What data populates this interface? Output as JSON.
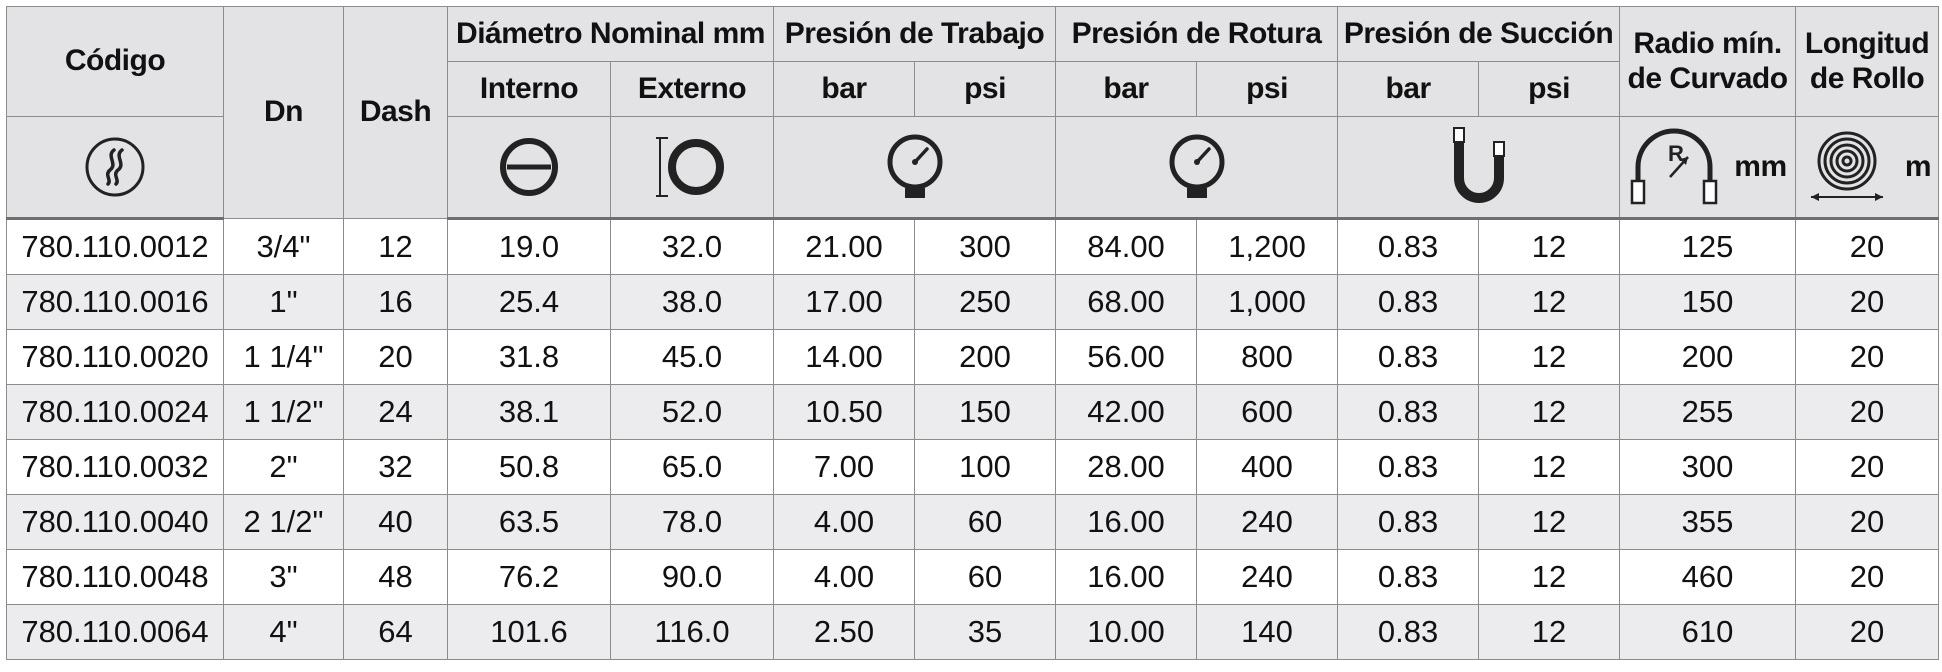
{
  "headers": {
    "codigo": "Código",
    "dn": "Dn",
    "dash": "Dash",
    "diametro": "Diámetro Nominal mm",
    "interno": "Interno",
    "externo": "Externo",
    "trabajo": "Presión de Trabajo",
    "rotura": "Presión de Rotura",
    "succion": "Presión de Succión",
    "bar": "bar",
    "psi": "psi",
    "radio_line1": "Radio mín.",
    "radio_line2": "de Curvado",
    "longitud_line1": "Longitud",
    "longitud_line2": "de Rollo",
    "radio_unit": "mm",
    "longitud_unit": "m"
  },
  "icons": {
    "codigo": "hose-code-icon",
    "interno": "inner-diameter-icon",
    "externo": "outer-diameter-icon",
    "trabajo": "pressure-gauge-icon",
    "rotura": "burst-pressure-gauge-icon",
    "succion": "u-tube-vacuum-icon",
    "radio": "bend-radius-icon",
    "radio_letter": "R",
    "longitud": "coil-length-icon"
  },
  "rows": [
    {
      "codigo": "780.110.0012",
      "dn": "3/4\"",
      "dash": "12",
      "interno": "19.0",
      "externo": "32.0",
      "trabajo_bar": "21.00",
      "trabajo_psi": "300",
      "rotura_bar": "84.00",
      "rotura_psi": "1,200",
      "succion_bar": "0.83",
      "succion_psi": "12",
      "radio": "125",
      "longitud": "20"
    },
    {
      "codigo": "780.110.0016",
      "dn": "1\"",
      "dash": "16",
      "interno": "25.4",
      "externo": "38.0",
      "trabajo_bar": "17.00",
      "trabajo_psi": "250",
      "rotura_bar": "68.00",
      "rotura_psi": "1,000",
      "succion_bar": "0.83",
      "succion_psi": "12",
      "radio": "150",
      "longitud": "20"
    },
    {
      "codigo": "780.110.0020",
      "dn": "1 1/4\"",
      "dash": "20",
      "interno": "31.8",
      "externo": "45.0",
      "trabajo_bar": "14.00",
      "trabajo_psi": "200",
      "rotura_bar": "56.00",
      "rotura_psi": "800",
      "succion_bar": "0.83",
      "succion_psi": "12",
      "radio": "200",
      "longitud": "20"
    },
    {
      "codigo": "780.110.0024",
      "dn": "1 1/2\"",
      "dash": "24",
      "interno": "38.1",
      "externo": "52.0",
      "trabajo_bar": "10.50",
      "trabajo_psi": "150",
      "rotura_bar": "42.00",
      "rotura_psi": "600",
      "succion_bar": "0.83",
      "succion_psi": "12",
      "radio": "255",
      "longitud": "20"
    },
    {
      "codigo": "780.110.0032",
      "dn": "2\"",
      "dash": "32",
      "interno": "50.8",
      "externo": "65.0",
      "trabajo_bar": "7.00",
      "trabajo_psi": "100",
      "rotura_bar": "28.00",
      "rotura_psi": "400",
      "succion_bar": "0.83",
      "succion_psi": "12",
      "radio": "300",
      "longitud": "20"
    },
    {
      "codigo": "780.110.0040",
      "dn": "2 1/2\"",
      "dash": "40",
      "interno": "63.5",
      "externo": "78.0",
      "trabajo_bar": "4.00",
      "trabajo_psi": "60",
      "rotura_bar": "16.00",
      "rotura_psi": "240",
      "succion_bar": "0.83",
      "succion_psi": "12",
      "radio": "355",
      "longitud": "20"
    },
    {
      "codigo": "780.110.0048",
      "dn": "3\"",
      "dash": "48",
      "interno": "76.2",
      "externo": "90.0",
      "trabajo_bar": "4.00",
      "trabajo_psi": "60",
      "rotura_bar": "16.00",
      "rotura_psi": "240",
      "succion_bar": "0.83",
      "succion_psi": "12",
      "radio": "460",
      "longitud": "20"
    },
    {
      "codigo": "780.110.0064",
      "dn": "4\"",
      "dash": "64",
      "interno": "101.6",
      "externo": "116.0",
      "trabajo_bar": "2.50",
      "trabajo_psi": "35",
      "rotura_bar": "10.00",
      "rotura_psi": "140",
      "succion_bar": "0.83",
      "succion_psi": "12",
      "radio": "610",
      "longitud": "20"
    }
  ],
  "colors": {
    "header_bg": "#e3e3e5",
    "row_alt_bg": "#ececee",
    "row_bg": "#ffffff",
    "border": "#8c8c8c",
    "text": "#111111"
  }
}
